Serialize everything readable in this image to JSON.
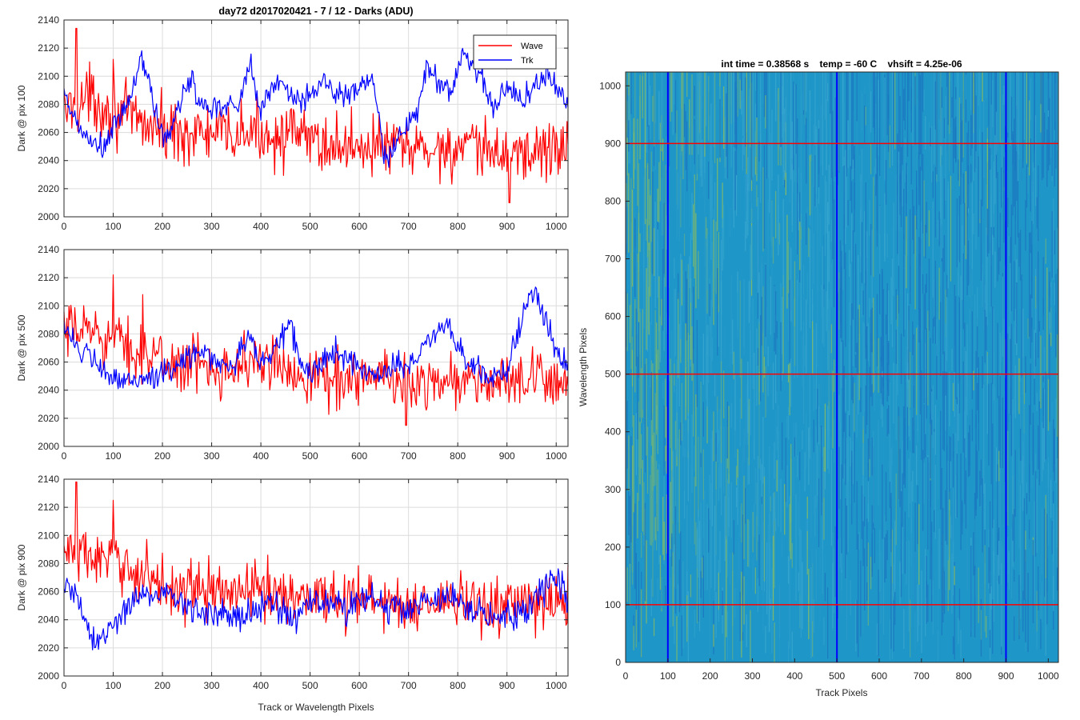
{
  "figure": {
    "left_title": "day72 d2017020421 - 7 / 12 - Darks (ADU)",
    "right_title": "int time = 0.38568 s    temp = -60 C    vhsift = 4.25e-06"
  },
  "colors": {
    "wave": "#ff0000",
    "trk": "#0000ff",
    "grid": "#dcdcdc",
    "axis": "#262626",
    "image_base": "#1f96c8",
    "image_warm": "#8fbf5a",
    "image_cool": "#1a76c0"
  },
  "chart_data": [
    {
      "type": "line",
      "title": "day72 d2017020421 - 7 / 12 - Darks (ADU)",
      "ylabel": "Dark @ pix 100",
      "xlabel": "",
      "xlim": [
        0,
        1024
      ],
      "ylim": [
        2000,
        2140
      ],
      "xticks": [
        0,
        100,
        200,
        300,
        400,
        500,
        600,
        700,
        800,
        900,
        1000
      ],
      "yticks": [
        2000,
        2020,
        2040,
        2060,
        2080,
        2100,
        2120,
        2140
      ],
      "legend": {
        "entries": [
          "Wave",
          "Trk"
        ],
        "placement": "top-right"
      },
      "grid": true,
      "series": [
        {
          "name": "Wave",
          "color": "#ff0000",
          "anchors_x": [
            0,
            50,
            100,
            150,
            200,
            250,
            300,
            350,
            400,
            450,
            500,
            550,
            600,
            650,
            700,
            750,
            800,
            850,
            900,
            950,
            1024
          ],
          "anchors_y": [
            2075,
            2085,
            2075,
            2068,
            2062,
            2060,
            2058,
            2058,
            2060,
            2058,
            2055,
            2050,
            2052,
            2050,
            2048,
            2048,
            2048,
            2046,
            2046,
            2046,
            2050
          ],
          "noise": 14,
          "spikes": [
            [
              25,
              2134
            ],
            [
              100,
              2112
            ],
            [
              905,
              2010
            ]
          ]
        },
        {
          "name": "Trk",
          "color": "#0000ff",
          "anchors_x": [
            0,
            20,
            40,
            60,
            80,
            100,
            120,
            140,
            155,
            170,
            185,
            200,
            215,
            240,
            260,
            275,
            300,
            330,
            355,
            380,
            395,
            420,
            440,
            460,
            480,
            495,
            520,
            545,
            575,
            600,
            625,
            650,
            660,
            675,
            700,
            720,
            740,
            760,
            790,
            810,
            830,
            850,
            870,
            900,
            930,
            950,
            980,
            1000,
            1024
          ],
          "anchors_y": [
            2085,
            2070,
            2058,
            2052,
            2048,
            2062,
            2075,
            2088,
            2115,
            2100,
            2075,
            2058,
            2058,
            2085,
            2100,
            2080,
            2078,
            2080,
            2082,
            2108,
            2078,
            2088,
            2098,
            2088,
            2080,
            2084,
            2098,
            2090,
            2085,
            2092,
            2100,
            2045,
            2040,
            2055,
            2062,
            2078,
            2110,
            2095,
            2090,
            2118,
            2108,
            2100,
            2075,
            2092,
            2085,
            2090,
            2102,
            2092,
            2078
          ],
          "noise": 6,
          "spikes": []
        }
      ]
    },
    {
      "type": "line",
      "title": "",
      "ylabel": "Dark @ pix 500",
      "xlabel": "",
      "xlim": [
        0,
        1024
      ],
      "ylim": [
        2000,
        2140
      ],
      "xticks": [
        0,
        100,
        200,
        300,
        400,
        500,
        600,
        700,
        800,
        900,
        1000
      ],
      "yticks": [
        2000,
        2020,
        2040,
        2060,
        2080,
        2100,
        2120,
        2140
      ],
      "grid": true,
      "series": [
        {
          "name": "Wave",
          "color": "#ff0000",
          "anchors_x": [
            0,
            50,
            100,
            150,
            200,
            250,
            300,
            350,
            400,
            450,
            500,
            550,
            600,
            650,
            700,
            750,
            800,
            850,
            900,
            950,
            1024
          ],
          "anchors_y": [
            2078,
            2085,
            2075,
            2068,
            2060,
            2058,
            2058,
            2058,
            2060,
            2055,
            2052,
            2048,
            2050,
            2048,
            2046,
            2047,
            2047,
            2045,
            2046,
            2045,
            2050
          ],
          "noise": 13,
          "spikes": [
            [
              100,
              2122
            ],
            [
              160,
              2108
            ],
            [
              695,
              2015
            ]
          ]
        },
        {
          "name": "Trk",
          "color": "#0000ff",
          "anchors_x": [
            0,
            30,
            60,
            90,
            110,
            140,
            180,
            220,
            260,
            300,
            330,
            350,
            375,
            400,
            430,
            460,
            480,
            500,
            530,
            560,
            600,
            640,
            670,
            700,
            740,
            780,
            800,
            830,
            870,
            900,
            940,
            960,
            980,
            1000,
            1024
          ],
          "anchors_y": [
            2090,
            2068,
            2060,
            2050,
            2045,
            2048,
            2050,
            2052,
            2068,
            2063,
            2058,
            2060,
            2078,
            2060,
            2070,
            2088,
            2060,
            2050,
            2062,
            2068,
            2055,
            2052,
            2058,
            2055,
            2075,
            2090,
            2070,
            2055,
            2050,
            2055,
            2100,
            2110,
            2085,
            2070,
            2055
          ],
          "noise": 6,
          "spikes": []
        }
      ]
    },
    {
      "type": "line",
      "title": "",
      "ylabel": "Dark @ pix 900",
      "xlabel": "Track or Wavelength Pixels",
      "xlim": [
        0,
        1024
      ],
      "ylim": [
        2000,
        2140
      ],
      "xticks": [
        0,
        100,
        200,
        300,
        400,
        500,
        600,
        700,
        800,
        900,
        1000
      ],
      "yticks": [
        2000,
        2020,
        2040,
        2060,
        2080,
        2100,
        2120,
        2140
      ],
      "grid": true,
      "series": [
        {
          "name": "Wave",
          "color": "#ff0000",
          "anchors_x": [
            0,
            50,
            100,
            150,
            200,
            250,
            300,
            350,
            400,
            450,
            500,
            550,
            600,
            650,
            700,
            750,
            800,
            850,
            900,
            950,
            1024
          ],
          "anchors_y": [
            2090,
            2085,
            2080,
            2075,
            2065,
            2062,
            2060,
            2060,
            2062,
            2058,
            2058,
            2055,
            2055,
            2052,
            2050,
            2052,
            2052,
            2050,
            2050,
            2050,
            2055
          ],
          "noise": 13,
          "spikes": [
            [
              25,
              2138
            ],
            [
              100,
              2125
            ]
          ]
        },
        {
          "name": "Trk",
          "color": "#0000ff",
          "anchors_x": [
            0,
            15,
            30,
            45,
            60,
            80,
            100,
            130,
            160,
            200,
            240,
            280,
            320,
            360,
            400,
            440,
            470,
            500,
            540,
            580,
            620,
            660,
            700,
            740,
            780,
            820,
            860,
            900,
            940,
            970,
            990,
            1010,
            1024
          ],
          "anchors_y": [
            2060,
            2065,
            2055,
            2035,
            2022,
            2025,
            2038,
            2050,
            2058,
            2060,
            2052,
            2045,
            2048,
            2042,
            2050,
            2048,
            2040,
            2055,
            2050,
            2048,
            2055,
            2050,
            2048,
            2052,
            2055,
            2048,
            2045,
            2040,
            2045,
            2060,
            2072,
            2068,
            2055
          ],
          "noise": 7,
          "spikes": []
        }
      ]
    },
    {
      "type": "heatmap",
      "title": "int time = 0.38568 s    temp = -60 C    vhsift = 4.25e-06",
      "xlabel": "Track Pixels",
      "ylabel": "Wavelength Pixels",
      "xlim": [
        0,
        1024
      ],
      "ylim": [
        0,
        1024
      ],
      "xticks": [
        0,
        100,
        200,
        300,
        400,
        500,
        600,
        700,
        800,
        900,
        1000
      ],
      "yticks": [
        0,
        100,
        200,
        300,
        400,
        500,
        600,
        700,
        800,
        900,
        1000
      ],
      "vertical_markers": [
        100,
        500,
        900
      ],
      "horizontal_markers": [
        100,
        500,
        900
      ],
      "warm_band": {
        "from": 0,
        "to": 100
      }
    }
  ]
}
